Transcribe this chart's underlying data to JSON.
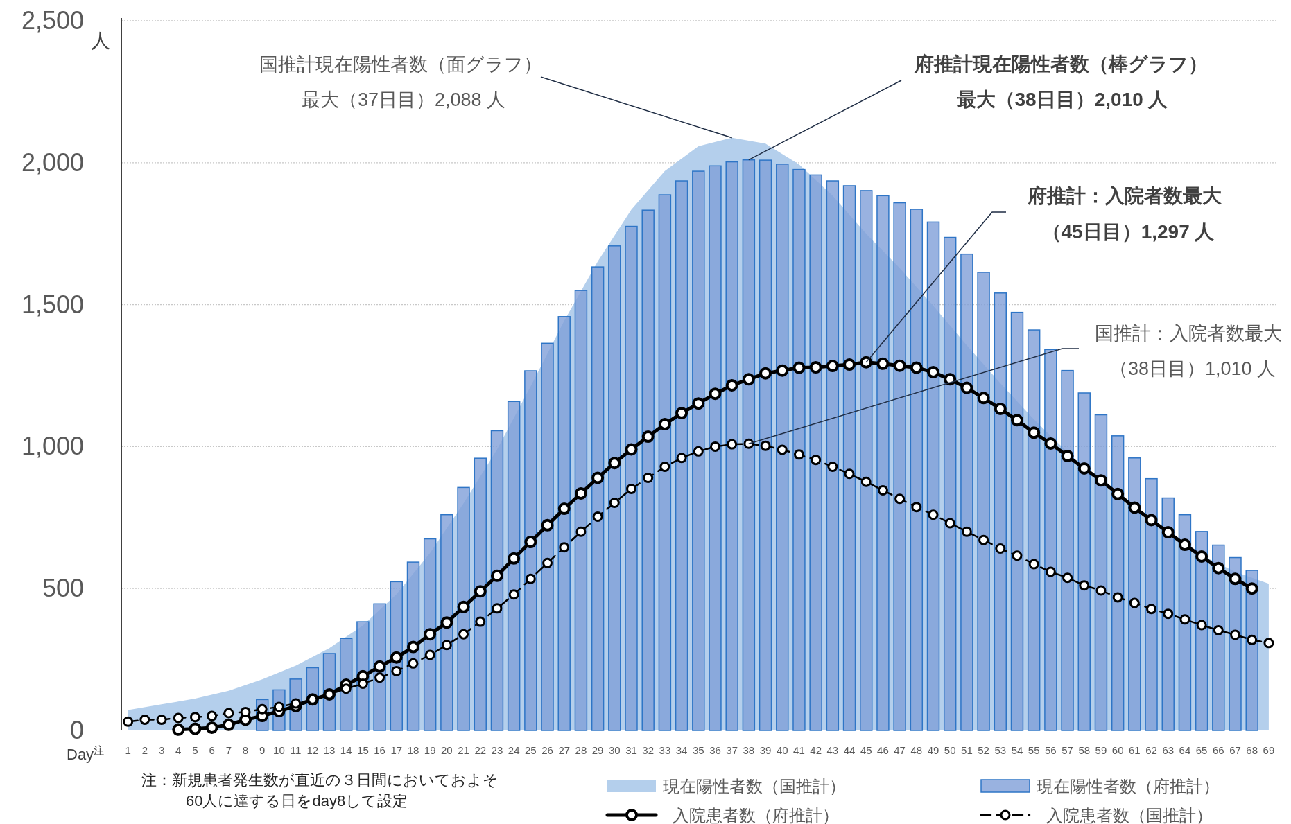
{
  "chart_data": {
    "type": "bar",
    "xlabel": "Day$^{注}$",
    "ylabel": "人",
    "x": [
      1,
      2,
      3,
      4,
      5,
      6,
      7,
      8,
      9,
      10,
      11,
      12,
      13,
      14,
      15,
      16,
      17,
      18,
      19,
      20,
      21,
      22,
      23,
      24,
      25,
      26,
      27,
      28,
      29,
      30,
      31,
      32,
      33,
      34,
      35,
      36,
      37,
      38,
      39,
      40,
      41,
      42,
      43,
      44,
      45,
      46,
      47,
      48,
      49,
      50,
      51,
      52,
      53,
      54,
      55,
      56,
      57,
      58,
      59,
      60,
      61,
      62,
      63,
      64,
      65,
      66,
      67,
      68,
      69
    ],
    "xlim": [
      0.6,
      69.5
    ],
    "xticks": [
      1,
      2,
      3,
      4,
      5,
      6,
      7,
      8,
      9,
      10,
      11,
      12,
      13,
      14,
      15,
      16,
      17,
      18,
      19,
      20,
      21,
      22,
      23,
      24,
      25,
      26,
      27,
      28,
      29,
      30,
      31,
      32,
      33,
      34,
      35,
      36,
      37,
      38,
      39,
      40,
      41,
      42,
      43,
      44,
      45,
      46,
      47,
      48,
      49,
      50,
      51,
      52,
      53,
      54,
      55,
      56,
      57,
      58,
      59,
      60,
      61,
      62,
      63,
      64,
      65,
      66,
      67,
      68,
      69
    ],
    "ylim": [
      0,
      2500
    ],
    "yticks": [
      0,
      500,
      {
        "value": 1000,
        "label": "1,000"
      },
      {
        "value": 1500,
        "label": "1,500"
      },
      {
        "value": 2000,
        "label": "2,000"
      },
      {
        "value": 2500,
        "label": "2,500"
      }
    ],
    "grid": "y",
    "legend": "bottom",
    "series": [
      {
        "name": "現在陽性者数（国推計）",
        "type": "area",
        "color": "#b4cfec",
        "x": [
          1,
          3,
          5,
          7,
          9,
          11,
          13,
          15,
          17,
          19,
          21,
          23,
          25,
          27,
          29,
          31,
          33,
          35,
          37,
          39,
          41,
          43,
          45,
          47,
          49,
          51,
          53,
          55,
          57,
          59,
          61,
          63,
          65,
          67,
          69
        ],
        "values": [
          72,
          92,
          112,
          140,
          180,
          228,
          290,
          370,
          480,
          625,
          800,
          990,
          1212,
          1443,
          1652,
          1835,
          1971,
          2058,
          2088,
          2067,
          1994,
          1884,
          1750,
          1629,
          1496,
          1357,
          1223,
          1096,
          980,
          872,
          777,
          690,
          617,
          559,
          517
        ]
      },
      {
        "name": "現在陽性者数（府推計）",
        "color": "#7f9fd8",
        "values": [
          null,
          null,
          null,
          null,
          null,
          null,
          null,
          null,
          109,
          143,
          181,
          221,
          271,
          324,
          383,
          446,
          524,
          593,
          675,
          760,
          856,
          959,
          1056,
          1159,
          1267,
          1364,
          1458,
          1550,
          1633,
          1707,
          1776,
          1833,
          1887,
          1936,
          1970,
          1989,
          2003,
          2010,
          2009,
          1995,
          1976,
          1957,
          1936,
          1919,
          1902,
          1884,
          1859,
          1836,
          1791,
          1737,
          1678,
          1614,
          1541,
          1473,
          1411,
          1342,
          1268,
          1189,
          1112,
          1038,
          960,
          887,
          819,
          760,
          701,
          653,
          609,
          564,
          null
        ]
      },
      {
        "name": "入院患者数（府推計）",
        "type": "line",
        "color": "#000000",
        "marker": "circle",
        "line_style": "solid",
        "values": [
          null,
          null,
          null,
          3,
          6,
          10,
          20,
          38,
          51,
          68,
          86,
          109,
          127,
          161,
          191,
          225,
          257,
          294,
          339,
          380,
          435,
          490,
          545,
          606,
          664,
          723,
          781,
          835,
          890,
          942,
          990,
          1035,
          1079,
          1118,
          1152,
          1186,
          1216,
          1237,
          1258,
          1268,
          1278,
          1279,
          1284,
          1289,
          1297,
          1292,
          1285,
          1278,
          1262,
          1237,
          1207,
          1171,
          1133,
          1093,
          1049,
          1011,
          967,
          923,
          881,
          833,
          785,
          741,
          698,
          654,
          613,
          572,
          534,
          500,
          null
        ]
      },
      {
        "name": "入院患者数（国推計）",
        "type": "line",
        "color": "#000000",
        "marker": "circle",
        "line_style": "dashed",
        "values": [
          31,
          38,
          38,
          44,
          47,
          51,
          61,
          65,
          75,
          83,
          95,
          109,
          127,
          147,
          165,
          186,
          209,
          236,
          266,
          301,
          339,
          383,
          430,
          479,
          534,
          590,
          645,
          700,
          753,
          802,
          851,
          890,
          929,
          960,
          983,
          1000,
          1008,
          1010,
          1003,
          989,
          972,
          953,
          929,
          904,
          876,
          846,
          816,
          787,
          760,
          730,
          700,
          671,
          641,
          616,
          586,
          559,
          538,
          511,
          493,
          469,
          449,
          428,
          411,
          391,
          371,
          353,
          337,
          319,
          308
        ]
      }
    ],
    "annotations": [
      {
        "text": "国推計現在陽性者数（面グラフ）",
        "x": 37,
        "y": 2088
      },
      "最大（37日目）2,088 人",
      {
        "text": "府推計現在陽性者数（棒グラフ）",
        "x": 38,
        "y": 2010
      },
      "最大（38日目）2,010 人",
      {
        "text": "府推計：入院者数最大",
        "x": 45,
        "y": 1297
      },
      "（45日目）1,297 人",
      {
        "text": "国推計：入院者数最大",
        "x": 38,
        "y": 1010
      },
      "（38日目）1,010 人",
      "注：新規患者発生数が直近の３日間においておよそ\n60人に達する日をday8して設定"
    ]
  }
}
